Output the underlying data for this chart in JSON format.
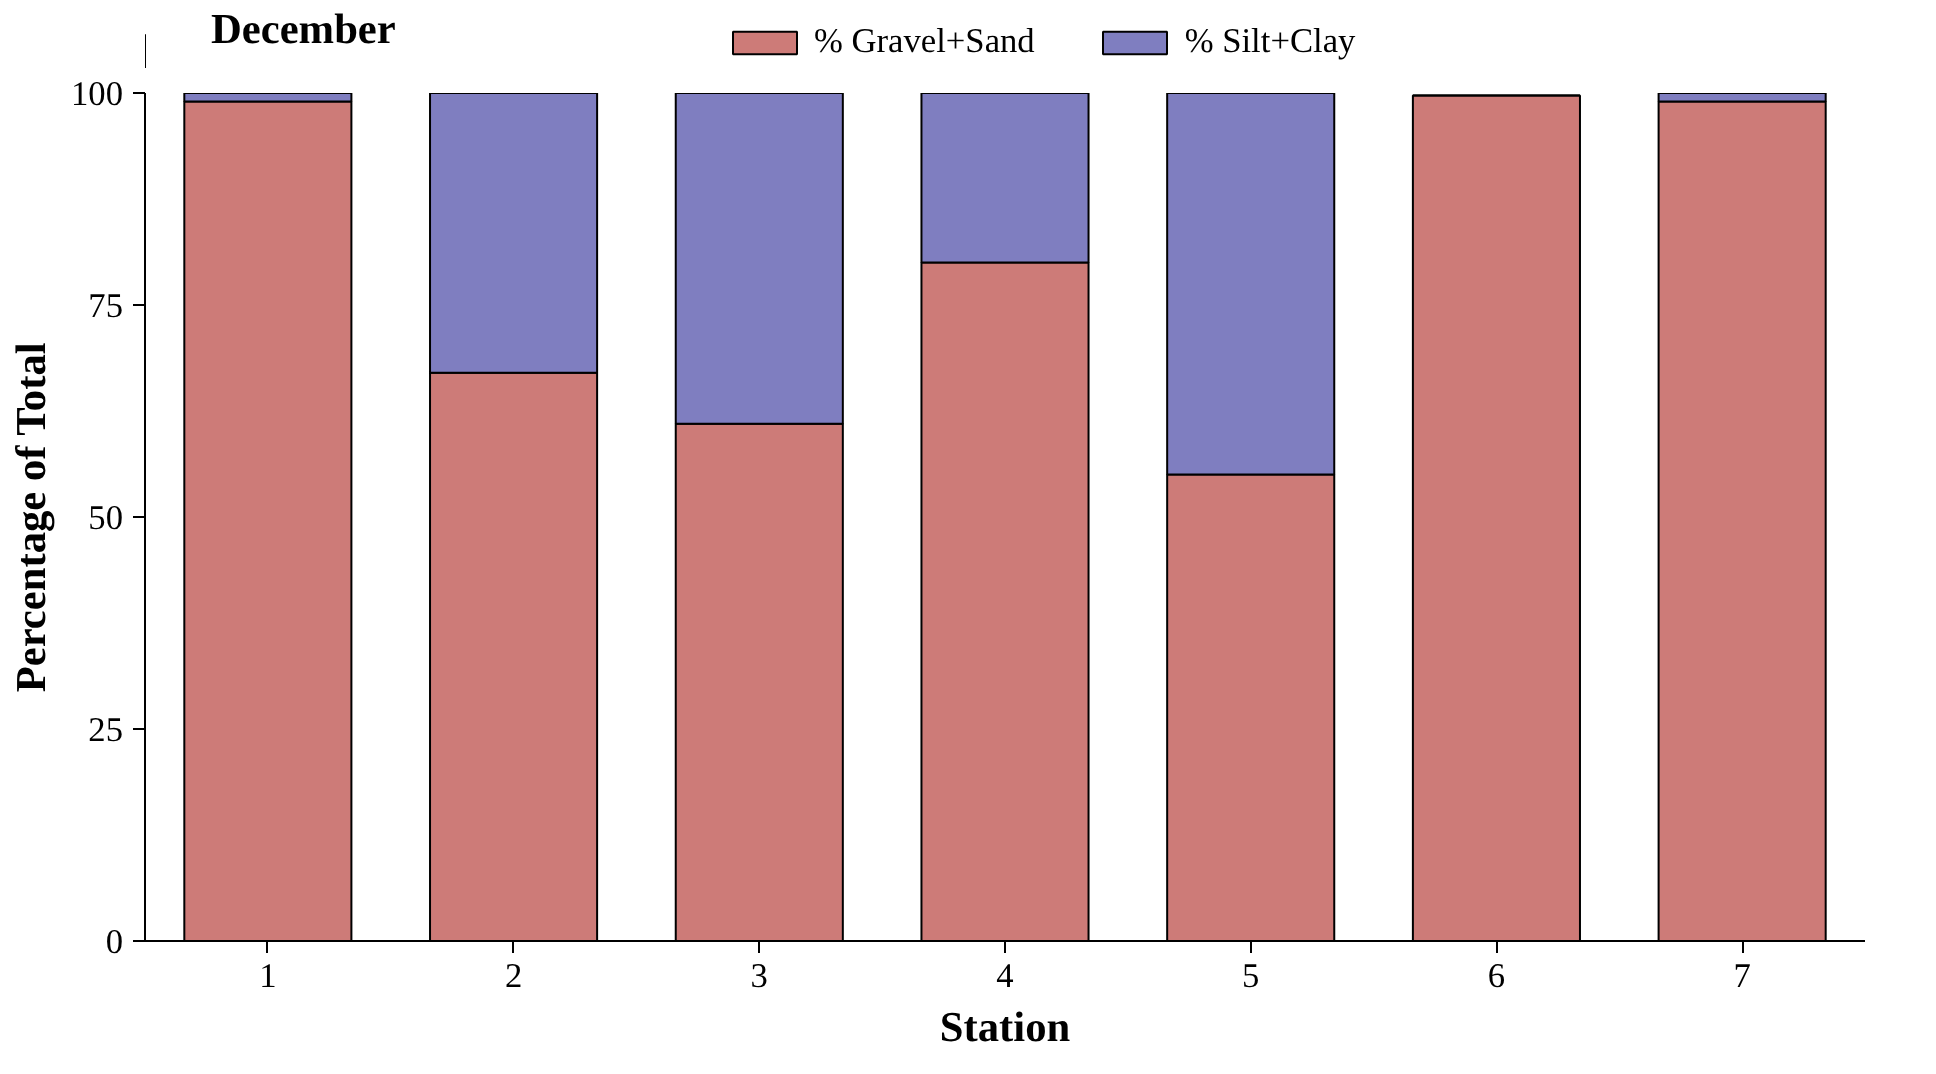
{
  "chart_data": {
    "type": "bar",
    "title": "December",
    "xlabel": "Station",
    "ylabel": "Percentage of Total",
    "stacked": true,
    "categories": [
      "1",
      "2",
      "3",
      "4",
      "5",
      "6",
      "7"
    ],
    "series": [
      {
        "name": "% Gravel+Sand",
        "color": "#cd7b78",
        "values": [
          99,
          67,
          61,
          80,
          55,
          99.7,
          99
        ]
      },
      {
        "name": "% Silt+Clay",
        "color": "#7f7ec0",
        "values": [
          1,
          33,
          39,
          20,
          45,
          null,
          1
        ]
      }
    ],
    "ylim": [
      0,
      100
    ],
    "yticks": [
      0,
      25,
      50,
      75,
      100
    ],
    "legend": "top"
  }
}
